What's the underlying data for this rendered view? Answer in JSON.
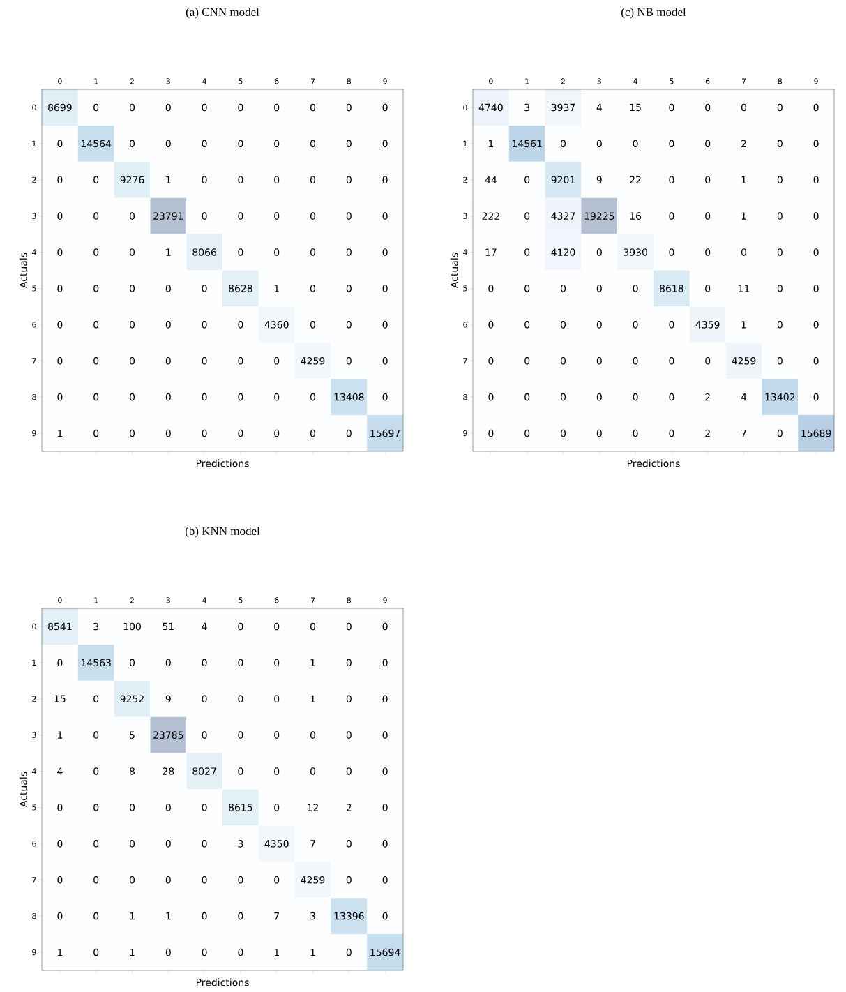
{
  "chart_data": [
    {
      "type": "heatmap",
      "title": "(a) CNN model",
      "xlabel": "Predictions",
      "ylabel": "Actuals",
      "data_labels": true,
      "categories": [
        "0",
        "1",
        "2",
        "3",
        "4",
        "5",
        "6",
        "7",
        "8",
        "9"
      ],
      "y_categories": [
        "0",
        "1",
        "2",
        "3",
        "4",
        "5",
        "6",
        "7",
        "8",
        "9"
      ],
      "cells": [
        [
          8699,
          0,
          0,
          0,
          0,
          0,
          0,
          0,
          0,
          0
        ],
        [
          0,
          14564,
          0,
          0,
          0,
          0,
          0,
          0,
          0,
          0
        ],
        [
          0,
          0,
          9276,
          1,
          0,
          0,
          0,
          0,
          0,
          0
        ],
        [
          0,
          0,
          0,
          23791,
          0,
          0,
          0,
          0,
          0,
          0
        ],
        [
          0,
          0,
          0,
          1,
          8066,
          0,
          0,
          0,
          0,
          0
        ],
        [
          0,
          0,
          0,
          0,
          0,
          8628,
          1,
          0,
          0,
          0
        ],
        [
          0,
          0,
          0,
          0,
          0,
          0,
          4360,
          0,
          0,
          0
        ],
        [
          0,
          0,
          0,
          0,
          0,
          0,
          0,
          4259,
          0,
          0
        ],
        [
          0,
          0,
          0,
          0,
          0,
          0,
          0,
          0,
          13408,
          0
        ],
        [
          1,
          0,
          0,
          0,
          0,
          0,
          0,
          0,
          0,
          15697
        ]
      ]
    },
    {
      "type": "heatmap",
      "title": "(c) NB model",
      "xlabel": "Predictions",
      "ylabel": "Actuals",
      "data_labels": true,
      "categories": [
        "0",
        "1",
        "2",
        "3",
        "4",
        "5",
        "6",
        "7",
        "8",
        "9"
      ],
      "y_categories": [
        "0",
        "1",
        "2",
        "3",
        "4",
        "5",
        "6",
        "7",
        "8",
        "9"
      ],
      "cells": [
        [
          4740,
          3,
          3937,
          4,
          15,
          0,
          0,
          0,
          0,
          0
        ],
        [
          1,
          14561,
          0,
          0,
          0,
          0,
          0,
          2,
          0,
          0
        ],
        [
          44,
          0,
          9201,
          9,
          22,
          0,
          0,
          1,
          0,
          0
        ],
        [
          222,
          0,
          4327,
          19225,
          16,
          0,
          0,
          1,
          0,
          0
        ],
        [
          17,
          0,
          4120,
          0,
          3930,
          0,
          0,
          0,
          0,
          0
        ],
        [
          0,
          0,
          0,
          0,
          0,
          8618,
          0,
          11,
          0,
          0
        ],
        [
          0,
          0,
          0,
          0,
          0,
          0,
          4359,
          1,
          0,
          0
        ],
        [
          0,
          0,
          0,
          0,
          0,
          0,
          0,
          4259,
          0,
          0
        ],
        [
          0,
          0,
          0,
          0,
          0,
          0,
          2,
          4,
          13402,
          0
        ],
        [
          0,
          0,
          0,
          0,
          0,
          0,
          2,
          7,
          0,
          15689
        ]
      ]
    },
    {
      "type": "heatmap",
      "title": "(b) KNN model",
      "xlabel": "Predictions",
      "ylabel": "Actuals",
      "data_labels": true,
      "categories": [
        "0",
        "1",
        "2",
        "3",
        "4",
        "5",
        "6",
        "7",
        "8",
        "9"
      ],
      "y_categories": [
        "0",
        "1",
        "2",
        "3",
        "4",
        "5",
        "6",
        "7",
        "8",
        "9"
      ],
      "cells": [
        [
          8541,
          3,
          100,
          51,
          4,
          0,
          0,
          0,
          0,
          0
        ],
        [
          0,
          14563,
          0,
          0,
          0,
          0,
          0,
          1,
          0,
          0
        ],
        [
          15,
          0,
          9252,
          9,
          0,
          0,
          0,
          1,
          0,
          0
        ],
        [
          1,
          0,
          5,
          23785,
          0,
          0,
          0,
          0,
          0,
          0
        ],
        [
          4,
          0,
          8,
          28,
          8027,
          0,
          0,
          0,
          0,
          0
        ],
        [
          0,
          0,
          0,
          0,
          0,
          8615,
          0,
          12,
          2,
          0
        ],
        [
          0,
          0,
          0,
          0,
          0,
          3,
          4350,
          7,
          0,
          0
        ],
        [
          0,
          0,
          0,
          0,
          0,
          0,
          0,
          4259,
          0,
          0
        ],
        [
          0,
          0,
          1,
          1,
          0,
          0,
          7,
          3,
          13396,
          0
        ],
        [
          1,
          0,
          1,
          0,
          0,
          0,
          1,
          1,
          0,
          15694
        ]
      ]
    }
  ]
}
